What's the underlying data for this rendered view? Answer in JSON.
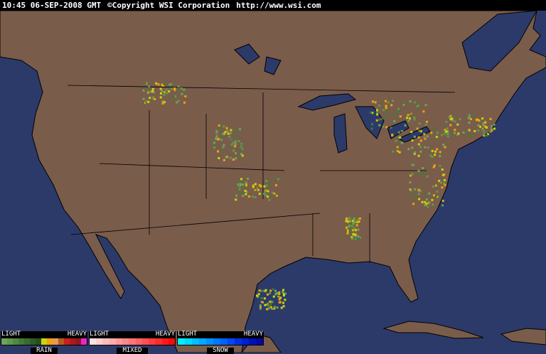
{
  "header": {
    "time": "10:45 06-SEP-2008 GMT",
    "copyright": "©Copyright WSI Corporation",
    "url": "http://www.wsi.com"
  },
  "colors": {
    "ocean": "#2c3a6a",
    "land": "#7a5c4b",
    "borders": "#000000"
  },
  "legend": [
    {
      "name": "RAIN",
      "light": "LIGHT",
      "heavy": "HEAVY",
      "colors": [
        "#6fa55a",
        "#5e9a4c",
        "#4f8a40",
        "#447a36",
        "#3a6b2e",
        "#2f5c26",
        "#24501d",
        "#cdd40a",
        "#f2a20c",
        "#e09a5c",
        "#b85a1c",
        "#c82020",
        "#b01818",
        "#901820",
        "#ee22cc"
      ]
    },
    {
      "name": "MIXED",
      "light": "LIGHT",
      "heavy": "HEAVY",
      "colors": [
        "#ffe0e0",
        "#ffcfd0",
        "#ffbcbe",
        "#ffaaac",
        "#ff989a",
        "#ff8688",
        "#ff7476",
        "#ff6264",
        "#ff5052",
        "#ff3e40",
        "#ff2c2e",
        "#ff1a1c",
        "#ff0808"
      ]
    },
    {
      "name": "SNOW",
      "light": "LIGHT",
      "heavy": "HEAVY",
      "colors": [
        "#00f0ff",
        "#00d8ff",
        "#00c0ff",
        "#00a8ff",
        "#0090ff",
        "#0078ff",
        "#0060f8",
        "#0048f0",
        "#0030e0",
        "#0020d0",
        "#0010b8",
        "#0808a0"
      ]
    }
  ]
}
